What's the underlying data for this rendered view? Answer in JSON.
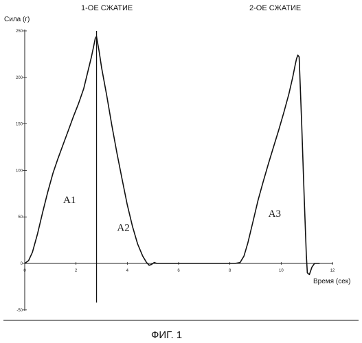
{
  "chart_data": {
    "type": "line",
    "header_left": "1-ОЕ СЖАТИЕ",
    "header_right": "2-ОЕ СЖАТИЕ",
    "ylabel": "Сила (г)",
    "xlabel": "Время (сек)",
    "figure_label": "ФИГ. 1",
    "xlim": [
      0,
      12
    ],
    "ylim": [
      -50,
      250
    ],
    "x_ticks": [
      0,
      2,
      4,
      6,
      8,
      10,
      12
    ],
    "y_ticks": [
      -50,
      0,
      50,
      100,
      150,
      200,
      250
    ],
    "grid": false,
    "series": [
      {
        "points": [
          [
            0,
            0
          ],
          [
            0.15,
            3
          ],
          [
            0.3,
            12
          ],
          [
            0.5,
            32
          ],
          [
            0.7,
            55
          ],
          [
            0.9,
            77
          ],
          [
            1.1,
            97
          ],
          [
            1.3,
            113
          ],
          [
            1.5,
            128
          ],
          [
            1.7,
            143
          ],
          [
            1.9,
            158
          ],
          [
            2.1,
            172
          ],
          [
            2.3,
            188
          ],
          [
            2.45,
            205
          ],
          [
            2.6,
            222
          ],
          [
            2.7,
            235
          ],
          [
            2.75,
            242
          ],
          [
            2.8,
            244
          ],
          [
            2.9,
            228
          ],
          [
            3.0,
            210
          ],
          [
            3.2,
            180
          ],
          [
            3.4,
            148
          ],
          [
            3.6,
            118
          ],
          [
            3.8,
            90
          ],
          [
            4.0,
            63
          ],
          [
            4.2,
            40
          ],
          [
            4.4,
            21
          ],
          [
            4.6,
            8
          ],
          [
            4.75,
            1
          ],
          [
            4.85,
            -2
          ],
          [
            4.95,
            -1
          ],
          [
            5.05,
            1
          ],
          [
            5.15,
            0
          ],
          [
            6.0,
            0
          ],
          [
            7.0,
            0
          ],
          [
            8.2,
            0
          ],
          [
            8.4,
            1
          ],
          [
            8.55,
            8
          ],
          [
            8.7,
            22
          ],
          [
            8.9,
            45
          ],
          [
            9.1,
            68
          ],
          [
            9.3,
            88
          ],
          [
            9.5,
            107
          ],
          [
            9.7,
            125
          ],
          [
            9.9,
            143
          ],
          [
            10.1,
            162
          ],
          [
            10.3,
            182
          ],
          [
            10.45,
            200
          ],
          [
            10.55,
            214
          ],
          [
            10.6,
            220
          ],
          [
            10.65,
            224
          ],
          [
            10.7,
            222
          ],
          [
            10.8,
            150
          ],
          [
            10.9,
            70
          ],
          [
            10.98,
            10
          ],
          [
            11.02,
            -10
          ],
          [
            11.1,
            -12
          ],
          [
            11.2,
            -4
          ],
          [
            11.3,
            0
          ],
          [
            11.5,
            0
          ]
        ]
      }
    ],
    "vertical_marker": {
      "x": 2.8,
      "y_from": -42,
      "y_to": 250
    },
    "region_labels": [
      {
        "text": "A1",
        "x": 1.5,
        "y": 65
      },
      {
        "text": "A2",
        "x": 3.6,
        "y": 35
      },
      {
        "text": "A3",
        "x": 9.5,
        "y": 50
      }
    ]
  }
}
